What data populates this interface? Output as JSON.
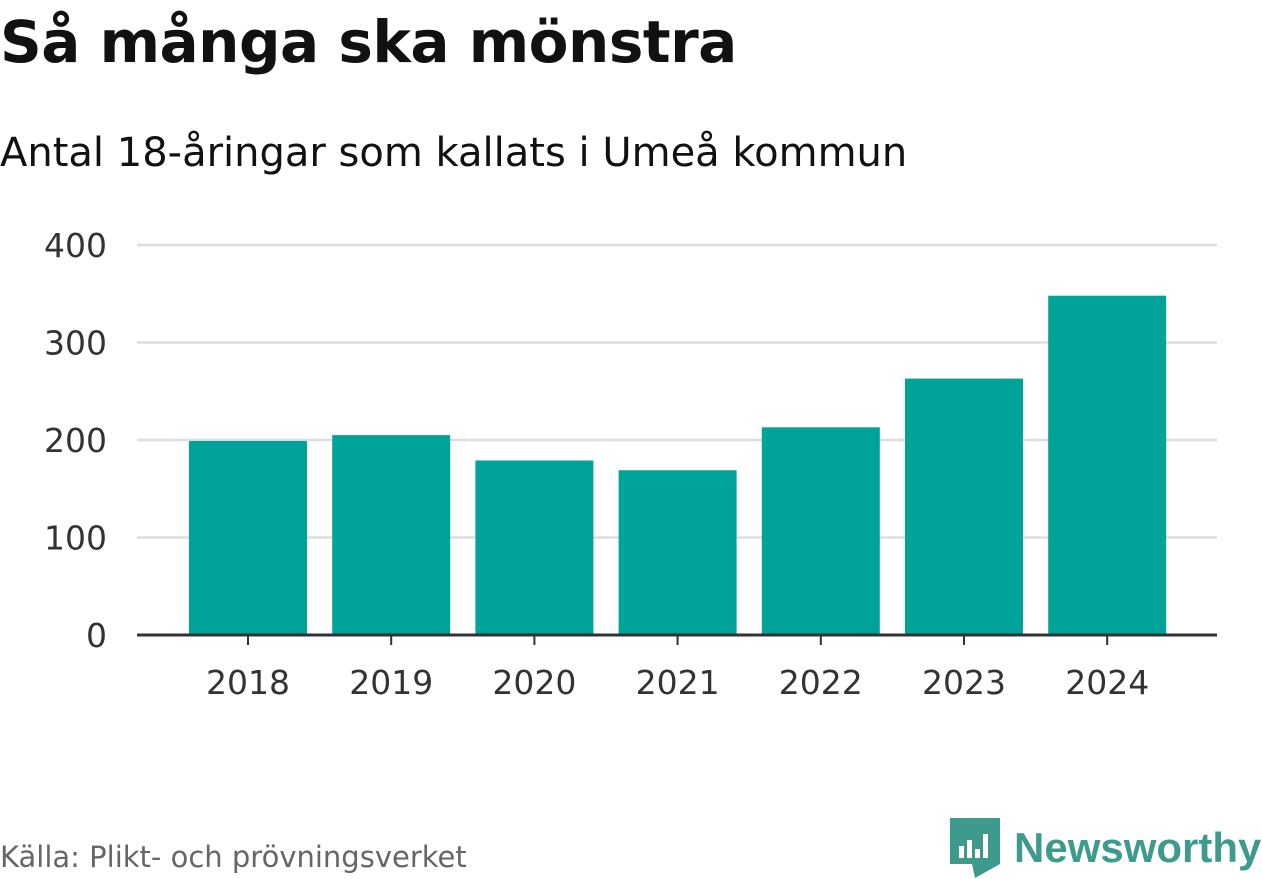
{
  "title": "Så många ska mönstra",
  "subtitle": "Antal 18-åringar som kallats i Umeå kommun",
  "source": "Källa: Plikt- och prövningsverket",
  "brand": {
    "name": "Newsworthy",
    "icon": "newsworthy-logo-icon",
    "color": "#3f9a8e"
  },
  "colors": {
    "bar": "#00a399",
    "grid": "#dddddd",
    "axis": "#333333",
    "tick_text": "#333333"
  },
  "chart_data": {
    "type": "bar",
    "title": "Så många ska mönstra",
    "subtitle": "Antal 18-åringar som kallats i Umeå kommun",
    "xlabel": "",
    "ylabel": "",
    "categories": [
      "2018",
      "2019",
      "2020",
      "2021",
      "2022",
      "2023",
      "2024"
    ],
    "values": [
      199,
      205,
      179,
      169,
      213,
      263,
      348
    ],
    "ylim": [
      0,
      400
    ],
    "yticks": [
      0,
      100,
      200,
      300,
      400
    ],
    "grid": true,
    "legend": "none"
  }
}
